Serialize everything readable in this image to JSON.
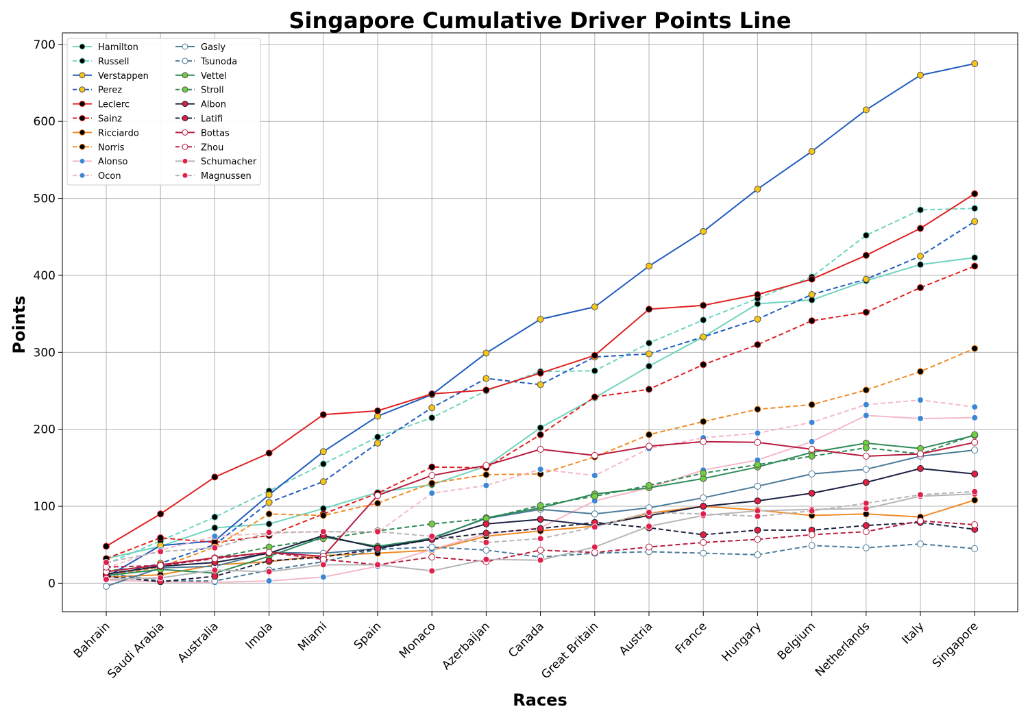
{
  "chart_data": {
    "type": "line",
    "title": "Singapore Cumulative Driver Points Line",
    "xlabel": "Races",
    "ylabel": "Points",
    "ylim": [
      -37,
      715
    ],
    "yticks": [
      0,
      100,
      200,
      300,
      400,
      500,
      600,
      700
    ],
    "grid": true,
    "legend_position": "top-left",
    "legend_columns": 2,
    "categories": [
      "Bahrain",
      "Saudi Arabia",
      "Australia",
      "Imola",
      "Miami",
      "Spain",
      "Monaco",
      "Azerbaijan",
      "Canada",
      "Great Britain",
      "Austria",
      "France",
      "Hungary",
      "Belgium",
      "Netherlands",
      "Italy",
      "Singapore"
    ],
    "series": [
      {
        "name": "Hamilton",
        "color": "#6fd3be",
        "dash": false,
        "marker_fill": "#000000",
        "marker_edge": "#6fd3be",
        "values": [
          32,
          48,
          72,
          77,
          97,
          118,
          128,
          152,
          202,
          241,
          282,
          320,
          363,
          368,
          393,
          414,
          423
        ]
      },
      {
        "name": "Russell",
        "color": "#6fd3be",
        "dash": true,
        "marker_fill": "#000000",
        "marker_edge": "#6fd3be",
        "values": [
          25,
          55,
          86,
          120,
          155,
          190,
          215,
          250,
          275,
          276,
          312,
          342,
          370,
          398,
          452,
          485,
          487
        ]
      },
      {
        "name": "Verstappen",
        "color": "#1f5bbf",
        "dash": false,
        "marker_fill": "#f5c518",
        "marker_edge": "#555555",
        "values": [
          8,
          49,
          55,
          115,
          171,
          217,
          245,
          299,
          343,
          359,
          412,
          457,
          512,
          561,
          615,
          660,
          675
        ]
      },
      {
        "name": "Perez",
        "color": "#1f5bbf",
        "dash": true,
        "marker_fill": "#f5c518",
        "marker_edge": "#555555",
        "values": [
          8,
          26,
          50,
          105,
          132,
          182,
          228,
          266,
          258,
          294,
          298,
          320,
          343,
          375,
          395,
          425,
          470
        ]
      },
      {
        "name": "Leclerc",
        "color": "#e02020",
        "dash": false,
        "marker_fill": "#000000",
        "marker_edge": "#e02020",
        "values": [
          48,
          90,
          138,
          169,
          219,
          224,
          246,
          251,
          273,
          296,
          356,
          361,
          375,
          395,
          426,
          461,
          506
        ]
      },
      {
        "name": "Sainz",
        "color": "#e02020",
        "dash": true,
        "marker_fill": "#000000",
        "marker_edge": "#e02020",
        "values": [
          32,
          59,
          53,
          62,
          90,
          117,
          151,
          150,
          193,
          242,
          252,
          284,
          310,
          341,
          352,
          384,
          412
        ]
      },
      {
        "name": "Ricciardo",
        "color": "#f08a24",
        "dash": false,
        "marker_fill": "#000000",
        "marker_edge": "#f08a24",
        "values": [
          8,
          11,
          24,
          28,
          36,
          39,
          43,
          61,
          68,
          74,
          91,
          100,
          95,
          88,
          90,
          86,
          108
        ]
      },
      {
        "name": "Norris",
        "color": "#f08a24",
        "dash": true,
        "marker_fill": "#000000",
        "marker_edge": "#f08a24",
        "values": [
          10,
          21,
          47,
          90,
          88,
          104,
          130,
          141,
          142,
          164,
          193,
          210,
          226,
          232,
          251,
          275,
          305
        ]
      },
      {
        "name": "Alonso",
        "color": "#f5b8c8",
        "dash": false,
        "marker_fill": "#3a87d6",
        "marker_edge": "#ffffff",
        "values": [
          4,
          2,
          1,
          3,
          8,
          22,
          44,
          64,
          72,
          107,
          124,
          147,
          160,
          184,
          218,
          214,
          215
        ]
      },
      {
        "name": "Ocon",
        "color": "#f5b8c8",
        "dash": true,
        "marker_fill": "#3a87d6",
        "marker_edge": "#ffffff",
        "values": [
          20,
          43,
          61,
          65,
          67,
          66,
          117,
          127,
          148,
          140,
          175,
          189,
          195,
          209,
          232,
          238,
          229
        ]
      },
      {
        "name": "Gasly",
        "color": "#4a7a98",
        "dash": false,
        "marker_fill": "#ffffff",
        "marker_edge": "#4a7a98",
        "values": [
          -4,
          20,
          22,
          40,
          39,
          45,
          59,
          84,
          96,
          90,
          98,
          111,
          126,
          142,
          148,
          165,
          173
        ]
      },
      {
        "name": "Tsunoda",
        "color": "#4a7a98",
        "dash": true,
        "marker_fill": "#ffffff",
        "marker_edge": "#4a7a98",
        "values": [
          13,
          3,
          3,
          17,
          28,
          44,
          47,
          43,
          34,
          39,
          41,
          39,
          37,
          49,
          46,
          51,
          45
        ]
      },
      {
        "name": "Vettel",
        "color": "#2e8b57",
        "dash": false,
        "marker_fill": "#6fcf3f",
        "marker_edge": "#555555",
        "values": [
          10,
          18,
          13,
          35,
          60,
          48,
          58,
          85,
          98,
          116,
          124,
          136,
          151,
          170,
          182,
          175,
          192
        ]
      },
      {
        "name": "Stroll",
        "color": "#2e8b57",
        "dash": true,
        "marker_fill": "#6fcf3f",
        "marker_edge": "#555555",
        "values": [
          16,
          23,
          33,
          47,
          58,
          68,
          77,
          84,
          101,
          113,
          127,
          143,
          154,
          165,
          176,
          168,
          193
        ]
      },
      {
        "name": "Albon",
        "color": "#1b2040",
        "dash": false,
        "marker_fill": "#e0203c",
        "marker_edge": "#1b2040",
        "values": [
          12,
          22,
          27,
          39,
          62,
          46,
          57,
          77,
          83,
          75,
          88,
          100,
          107,
          117,
          131,
          149,
          142
        ]
      },
      {
        "name": "Latifi",
        "color": "#1b2040",
        "dash": true,
        "marker_fill": "#e0203c",
        "marker_edge": "#1b2040",
        "values": [
          9,
          2,
          9,
          29,
          34,
          45,
          57,
          65,
          71,
          79,
          72,
          63,
          69,
          69,
          75,
          79,
          70
        ]
      },
      {
        "name": "Bottas",
        "color": "#b81c40",
        "dash": false,
        "marker_fill": "#ffffff",
        "marker_edge": "#b81c40",
        "values": [
          15,
          24,
          33,
          40,
          35,
          114,
          140,
          153,
          174,
          166,
          178,
          184,
          183,
          174,
          165,
          168,
          183
        ]
      },
      {
        "name": "Zhou",
        "color": "#b81c40",
        "dash": true,
        "marker_fill": "#ffffff",
        "marker_edge": "#b81c40",
        "values": [
          21,
          23,
          32,
          40,
          31,
          24,
          34,
          28,
          43,
          40,
          47,
          53,
          57,
          63,
          67,
          81,
          76
        ]
      },
      {
        "name": "Schumacher",
        "color": "#b5b5b5",
        "dash": false,
        "marker_fill": "#e0204c",
        "marker_edge": "#ffffff",
        "values": [
          5,
          7,
          17,
          15,
          24,
          24,
          16,
          31,
          30,
          47,
          74,
          88,
          94,
          96,
          97,
          113,
          116
        ]
      },
      {
        "name": "Magnussen",
        "color": "#b5b5b5",
        "dash": true,
        "marker_fill": "#e0204c",
        "marker_edge": "#ffffff",
        "values": [
          27,
          41,
          46,
          66,
          67,
          67,
          61,
          53,
          58,
          73,
          92,
          90,
          87,
          94,
          104,
          115,
          119
        ]
      }
    ]
  }
}
